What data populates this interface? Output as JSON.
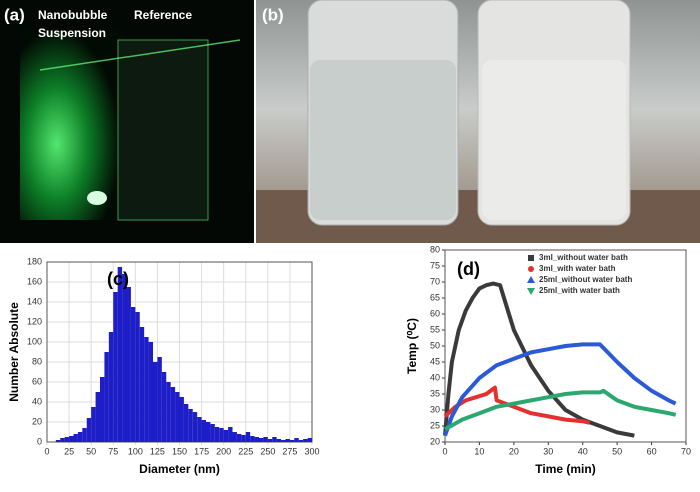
{
  "panels": [
    {
      "label": "(a)",
      "texts": [
        "Nanobubble",
        "Suspension",
        "Reference"
      ]
    },
    {
      "label": "(b)"
    }
  ],
  "chart_data": [
    {
      "type": "histogram",
      "label": "(c)",
      "x_label": "Diameter (nm)",
      "y_label": "Number  Absolute",
      "color": "#1e1ec8",
      "grid": true,
      "bins": [
        10,
        15,
        20,
        25,
        30,
        35,
        40,
        45,
        50,
        55,
        60,
        65,
        70,
        75,
        80,
        85,
        90,
        95,
        100,
        105,
        110,
        115,
        120,
        125,
        130,
        135,
        140,
        145,
        150,
        155,
        160,
        165,
        170,
        175,
        180,
        185,
        190,
        195,
        200,
        205,
        210,
        215,
        220,
        225,
        230,
        235,
        240,
        245,
        250,
        255,
        260,
        265,
        270,
        275,
        280,
        285,
        290,
        295,
        300
      ],
      "values": [
        2,
        4,
        5,
        6,
        8,
        10,
        14,
        24,
        35,
        50,
        65,
        90,
        110,
        150,
        175,
        168,
        155,
        135,
        130,
        115,
        105,
        100,
        80,
        85,
        70,
        60,
        55,
        50,
        45,
        38,
        33,
        30,
        25,
        22,
        20,
        18,
        15,
        14,
        12,
        15,
        10,
        8,
        7,
        10,
        6,
        5,
        4,
        5,
        3,
        5,
        3,
        2,
        3,
        2,
        4,
        2,
        3,
        4
      ],
      "xlim": [
        0,
        300
      ],
      "xticks": [
        0,
        25,
        50,
        75,
        100,
        125,
        150,
        175,
        200,
        225,
        250,
        275,
        300
      ],
      "ylim": [
        0,
        180
      ],
      "yticks": [
        0,
        20,
        40,
        60,
        80,
        100,
        120,
        140,
        160,
        180
      ]
    },
    {
      "type": "line",
      "label": "(d)",
      "x_label": "Time (min)",
      "y_label": "Temp (⁰C)",
      "grid": false,
      "xlim": [
        0,
        70
      ],
      "xticks": [
        0,
        10,
        20,
        30,
        40,
        50,
        60,
        70
      ],
      "ylim": [
        20,
        80
      ],
      "yticks": [
        20,
        25,
        30,
        35,
        40,
        45,
        50,
        55,
        60,
        65,
        70,
        75,
        80
      ],
      "series": [
        {
          "name": "3ml_without water bath",
          "color": "#3a3a3a",
          "marker": "square",
          "x": [
            0,
            1,
            2,
            4,
            6,
            8,
            10,
            12,
            14,
            16,
            18,
            20,
            25,
            30,
            35,
            40,
            45,
            50,
            55
          ],
          "values": [
            22,
            35,
            45,
            55,
            61,
            65,
            68,
            69,
            69.5,
            69,
            62,
            55,
            44,
            36,
            30,
            27,
            25,
            23,
            22
          ]
        },
        {
          "name": "3ml_with water bath",
          "color": "#e53030",
          "marker": "circle",
          "x": [
            0,
            3,
            6,
            9,
            12,
            14.5,
            15,
            20,
            25,
            30,
            35,
            40,
            42
          ],
          "values": [
            28,
            31,
            33,
            34,
            35,
            37,
            33,
            31,
            29,
            28,
            27,
            26.5,
            26
          ]
        },
        {
          "name": "25ml_without water bath",
          "color": "#2a5ad8",
          "marker": "triangle",
          "x": [
            0,
            2,
            5,
            10,
            15,
            20,
            25,
            30,
            35,
            40,
            45,
            50,
            55,
            60,
            65,
            67
          ],
          "values": [
            22,
            28,
            34,
            40,
            44,
            46,
            48,
            49,
            50,
            50.5,
            50.5,
            45,
            40,
            36,
            33,
            32
          ]
        },
        {
          "name": "25ml_with water bath",
          "color": "#2aa870",
          "marker": "triangle-down",
          "x": [
            0,
            5,
            10,
            15,
            20,
            25,
            30,
            35,
            40,
            45,
            46,
            50,
            55,
            60,
            65,
            67
          ],
          "values": [
            24,
            27,
            29,
            31,
            32,
            33,
            34,
            35,
            35.5,
            35.5,
            36,
            33,
            31,
            30,
            29,
            28.5
          ]
        }
      ]
    }
  ]
}
